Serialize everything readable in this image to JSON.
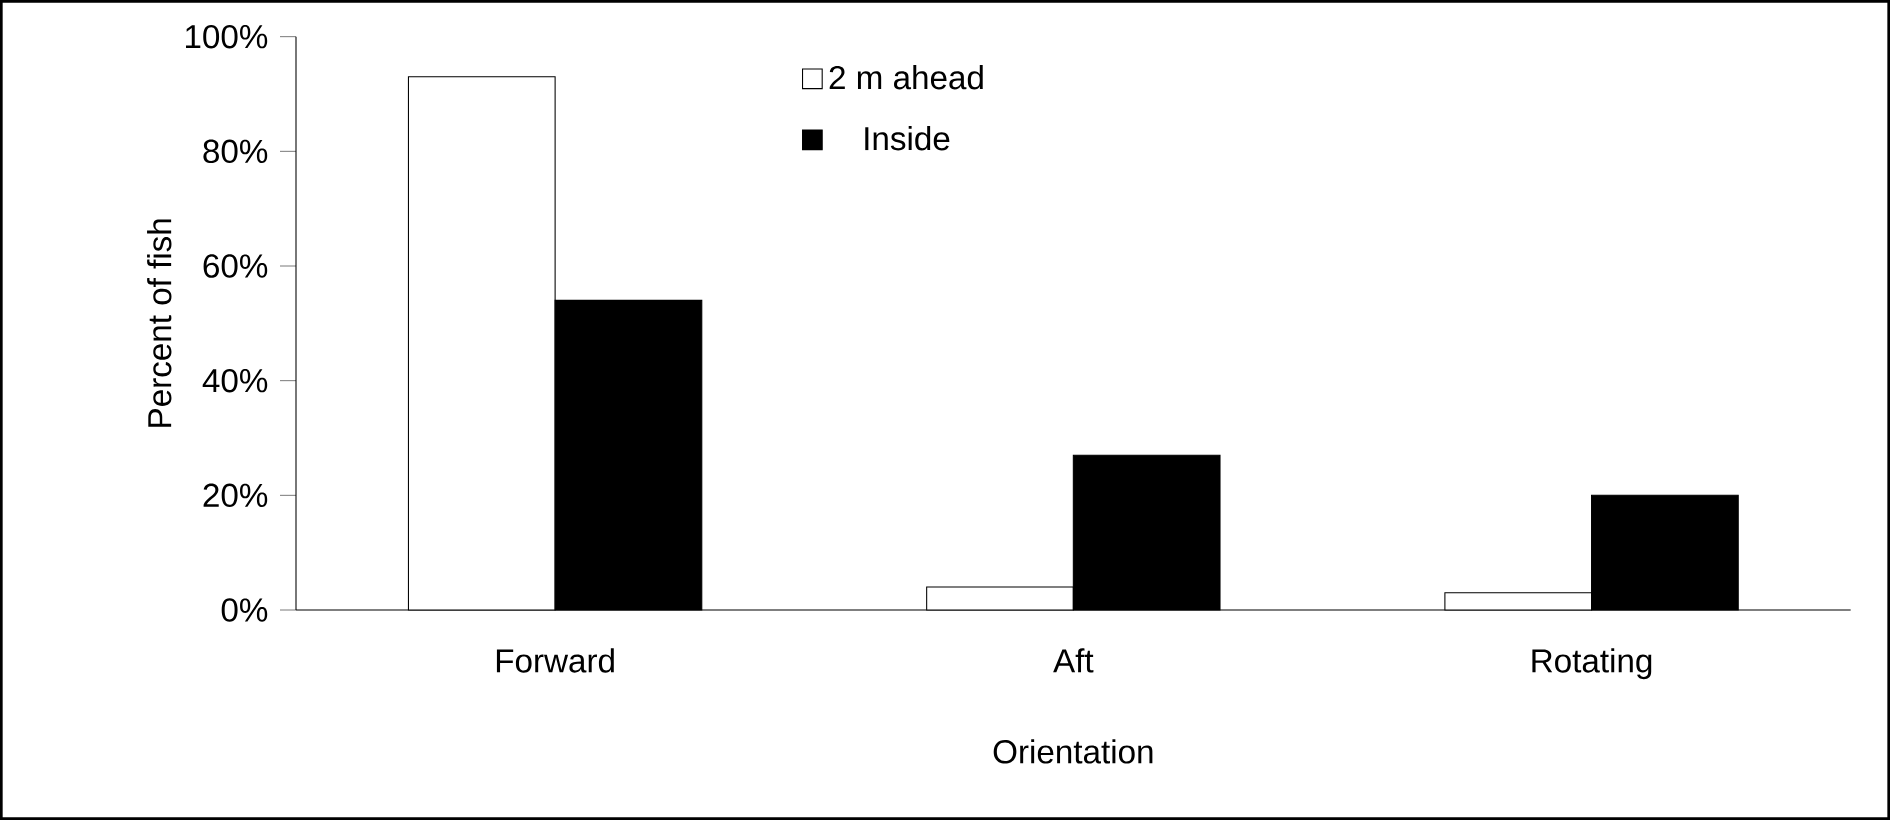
{
  "chart_data": {
    "type": "bar",
    "xlabel": "Orientation",
    "ylabel": "Percent of fish",
    "categories": [
      "Forward",
      "Aft",
      "Rotating"
    ],
    "series": [
      {
        "name": "2 m ahead",
        "color": "#ffffff",
        "values": [
          93,
          4,
          3
        ]
      },
      {
        "name": "Inside",
        "color": "#000000",
        "values": [
          54,
          27,
          20
        ]
      }
    ],
    "ylim": [
      0,
      100
    ],
    "yticks": [
      {
        "value": 0,
        "label": "0%"
      },
      {
        "value": 20,
        "label": "20%"
      },
      {
        "value": 40,
        "label": "40%"
      },
      {
        "value": 60,
        "label": "60%"
      },
      {
        "value": 80,
        "label": "80%"
      },
      {
        "value": 100,
        "label": "100%"
      }
    ],
    "grid": false,
    "legend": "top"
  }
}
